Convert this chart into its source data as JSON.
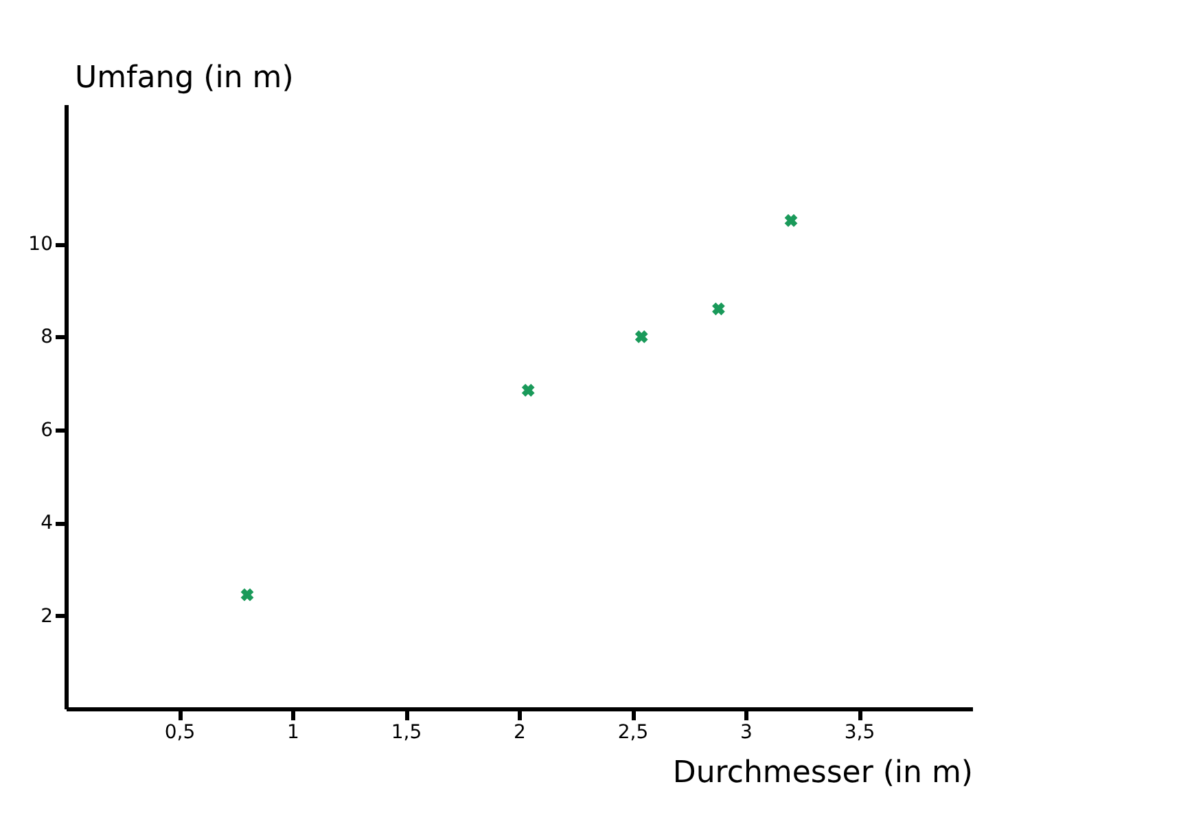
{
  "chart_data": {
    "type": "scatter",
    "xlabel": "Durchmesser (in m)",
    "ylabel": "Umfang (in m)",
    "x": [
      0.8,
      2.04,
      2.54,
      2.88,
      3.2
    ],
    "series": [
      {
        "color": "#1a9a5a",
        "values": [
          2.45,
          6.85,
          8.0,
          8.6,
          10.5
        ]
      }
    ],
    "xlim": [
      0,
      4
    ],
    "ylim": [
      0,
      13
    ],
    "xticks": [
      {
        "value": 0.5,
        "label": "0,5"
      },
      1,
      {
        "value": 1.5,
        "label": "1,5"
      },
      2,
      {
        "value": 2.5,
        "label": "2,5"
      },
      3,
      {
        "value": 3.5,
        "label": "3,5"
      }
    ],
    "yticks": [
      2,
      4,
      6,
      8,
      10
    ],
    "marker": "cross",
    "grid": false
  }
}
